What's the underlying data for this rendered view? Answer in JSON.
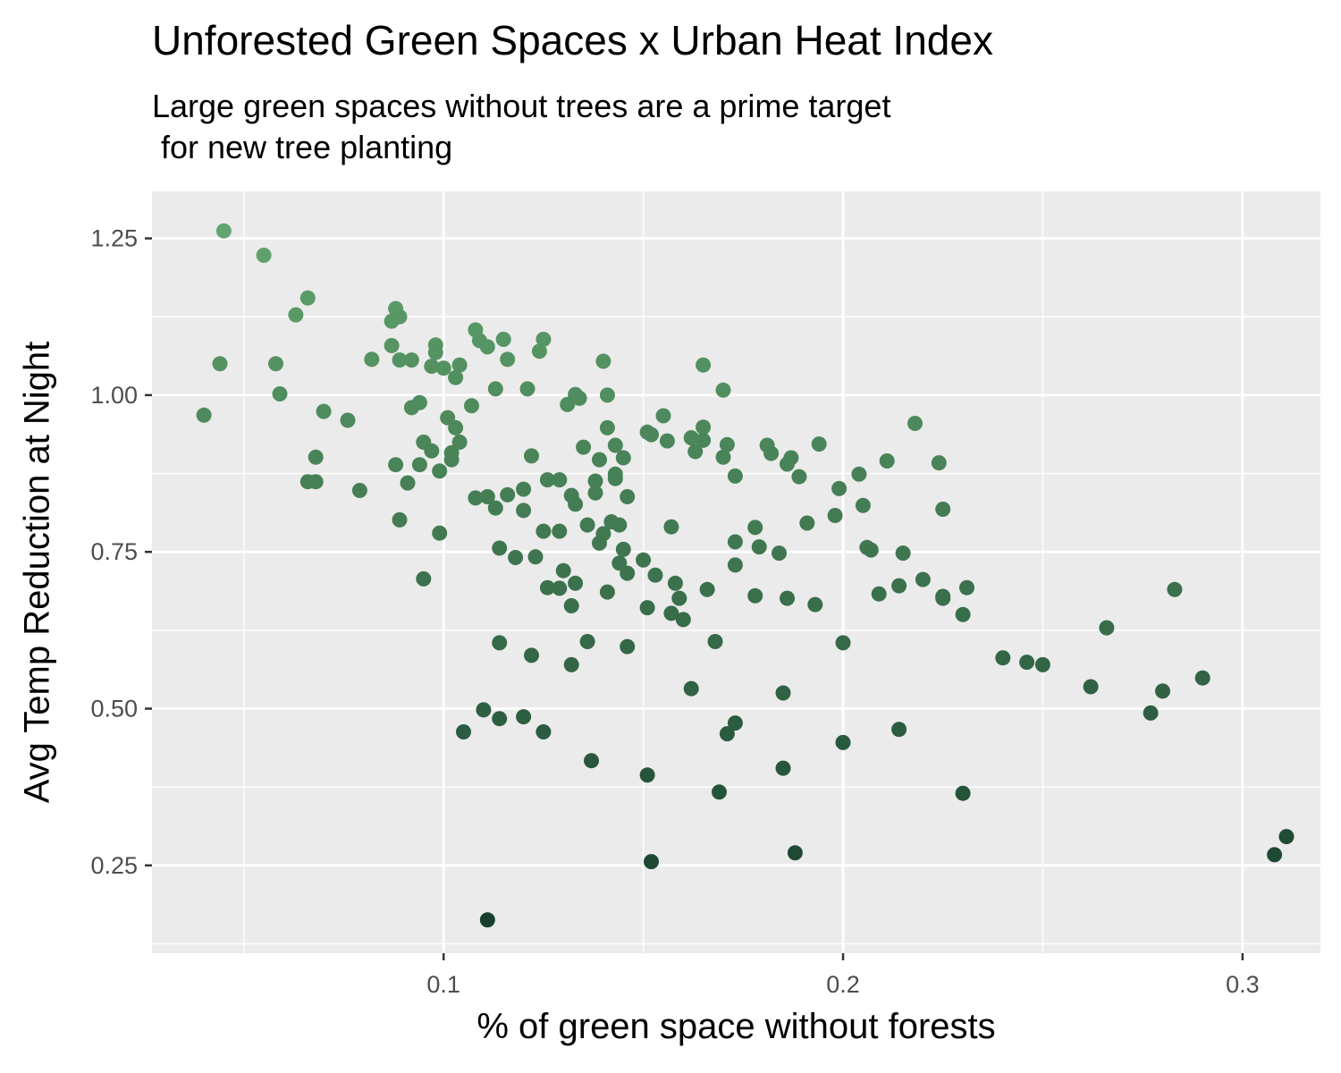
{
  "chart_data": {
    "type": "scatter",
    "title": "Unforested Green Spaces x Urban Heat Index",
    "subtitle": "Large green spaces without trees are a prime target\n for new tree planting",
    "xlabel": "% of green space without forests",
    "ylabel": "Avg Temp Reduction at Night",
    "xlim": [
      0.027,
      0.3195
    ],
    "ylim": [
      0.11,
      1.325
    ],
    "xticks": [
      0.1,
      0.2,
      0.3
    ],
    "xtick_labels": [
      "0.1",
      "0.2",
      "0.3"
    ],
    "yticks": [
      0.25,
      0.5,
      0.75,
      1.0,
      1.25
    ],
    "ytick_labels": [
      "0.25",
      "0.50",
      "0.75",
      "1.00",
      "1.25"
    ],
    "grid": true,
    "colors": {
      "panel": "#ebebeb",
      "grid": "#ffffff",
      "point_high": "#62a56e",
      "point_low": "#17402d"
    },
    "points": [
      [
        0.045,
        1.262
      ],
      [
        0.055,
        1.223
      ],
      [
        0.044,
        1.05
      ],
      [
        0.04,
        0.968
      ],
      [
        0.066,
        1.155
      ],
      [
        0.063,
        1.128
      ],
      [
        0.058,
        1.05
      ],
      [
        0.059,
        1.002
      ],
      [
        0.068,
        0.901
      ],
      [
        0.066,
        0.862
      ],
      [
        0.068,
        0.862
      ],
      [
        0.07,
        0.974
      ],
      [
        0.076,
        0.96
      ],
      [
        0.079,
        0.848
      ],
      [
        0.082,
        1.057
      ],
      [
        0.088,
        1.138
      ],
      [
        0.087,
        1.118
      ],
      [
        0.089,
        1.125
      ],
      [
        0.087,
        1.079
      ],
      [
        0.089,
        1.056
      ],
      [
        0.092,
        1.056
      ],
      [
        0.088,
        0.889
      ],
      [
        0.089,
        0.801
      ],
      [
        0.091,
        0.86
      ],
      [
        0.092,
        0.98
      ],
      [
        0.094,
        0.988
      ],
      [
        0.095,
        0.925
      ],
      [
        0.094,
        0.889
      ],
      [
        0.095,
        0.707
      ],
      [
        0.097,
        1.046
      ],
      [
        0.098,
        1.08
      ],
      [
        0.098,
        1.068
      ],
      [
        0.1,
        1.043
      ],
      [
        0.097,
        0.911
      ],
      [
        0.099,
        0.879
      ],
      [
        0.099,
        0.78
      ],
      [
        0.101,
        0.964
      ],
      [
        0.103,
        1.028
      ],
      [
        0.104,
        1.048
      ],
      [
        0.103,
        0.948
      ],
      [
        0.102,
        0.908
      ],
      [
        0.102,
        0.897
      ],
      [
        0.104,
        0.925
      ],
      [
        0.107,
        0.983
      ],
      [
        0.108,
        1.104
      ],
      [
        0.109,
        1.087
      ],
      [
        0.111,
        1.077
      ],
      [
        0.108,
        0.836
      ],
      [
        0.111,
        0.838
      ],
      [
        0.113,
        1.01
      ],
      [
        0.115,
        1.089
      ],
      [
        0.116,
        1.057
      ],
      [
        0.116,
        0.841
      ],
      [
        0.113,
        0.82
      ],
      [
        0.114,
        0.756
      ],
      [
        0.118,
        0.741
      ],
      [
        0.114,
        0.605
      ],
      [
        0.105,
        0.463
      ],
      [
        0.11,
        0.498
      ],
      [
        0.114,
        0.484
      ],
      [
        0.111,
        0.163
      ],
      [
        0.12,
        0.487
      ],
      [
        0.121,
        1.01
      ],
      [
        0.122,
        0.903
      ],
      [
        0.12,
        0.85
      ],
      [
        0.12,
        0.816
      ],
      [
        0.125,
        1.089
      ],
      [
        0.124,
        1.07
      ],
      [
        0.126,
        0.865
      ],
      [
        0.129,
        0.865
      ],
      [
        0.125,
        0.783
      ],
      [
        0.129,
        0.783
      ],
      [
        0.123,
        0.742
      ],
      [
        0.126,
        0.693
      ],
      [
        0.129,
        0.692
      ],
      [
        0.13,
        0.72
      ],
      [
        0.122,
        0.585
      ],
      [
        0.125,
        0.463
      ],
      [
        0.131,
        0.985
      ],
      [
        0.133,
        1.001
      ],
      [
        0.134,
        0.995
      ],
      [
        0.132,
        0.84
      ],
      [
        0.133,
        0.826
      ],
      [
        0.135,
        0.917
      ],
      [
        0.136,
        0.793
      ],
      [
        0.133,
        0.7
      ],
      [
        0.132,
        0.664
      ],
      [
        0.132,
        0.57
      ],
      [
        0.136,
        0.607
      ],
      [
        0.137,
        0.417
      ],
      [
        0.138,
        0.863
      ],
      [
        0.138,
        0.844
      ],
      [
        0.139,
        0.897
      ],
      [
        0.14,
        1.054
      ],
      [
        0.141,
        1.0
      ],
      [
        0.141,
        0.948
      ],
      [
        0.143,
        0.92
      ],
      [
        0.143,
        0.874
      ],
      [
        0.143,
        0.867
      ],
      [
        0.145,
        0.9
      ],
      [
        0.146,
        0.838
      ],
      [
        0.142,
        0.798
      ],
      [
        0.144,
        0.793
      ],
      [
        0.14,
        0.779
      ],
      [
        0.139,
        0.764
      ],
      [
        0.145,
        0.754
      ],
      [
        0.144,
        0.732
      ],
      [
        0.146,
        0.716
      ],
      [
        0.141,
        0.686
      ],
      [
        0.146,
        0.599
      ],
      [
        0.15,
        0.737
      ],
      [
        0.151,
        0.941
      ],
      [
        0.152,
        0.937
      ],
      [
        0.155,
        0.967
      ],
      [
        0.156,
        0.927
      ],
      [
        0.153,
        0.713
      ],
      [
        0.151,
        0.661
      ],
      [
        0.151,
        0.394
      ],
      [
        0.152,
        0.256
      ],
      [
        0.157,
        0.79
      ],
      [
        0.158,
        0.7
      ],
      [
        0.159,
        0.676
      ],
      [
        0.157,
        0.652
      ],
      [
        0.16,
        0.642
      ],
      [
        0.162,
        0.932
      ],
      [
        0.163,
        0.91
      ],
      [
        0.165,
        0.949
      ],
      [
        0.165,
        0.928
      ],
      [
        0.165,
        1.048
      ],
      [
        0.162,
        0.532
      ],
      [
        0.166,
        0.69
      ],
      [
        0.168,
        0.607
      ],
      [
        0.17,
        1.008
      ],
      [
        0.17,
        0.901
      ],
      [
        0.171,
        0.921
      ],
      [
        0.173,
        0.871
      ],
      [
        0.173,
        0.766
      ],
      [
        0.173,
        0.729
      ],
      [
        0.169,
        0.367
      ],
      [
        0.171,
        0.46
      ],
      [
        0.173,
        0.477
      ],
      [
        0.178,
        0.789
      ],
      [
        0.179,
        0.758
      ],
      [
        0.178,
        0.68
      ],
      [
        0.181,
        0.92
      ],
      [
        0.182,
        0.907
      ],
      [
        0.184,
        0.748
      ],
      [
        0.185,
        0.525
      ],
      [
        0.185,
        0.405
      ],
      [
        0.186,
        0.676
      ],
      [
        0.186,
        0.89
      ],
      [
        0.187,
        0.9
      ],
      [
        0.189,
        0.87
      ],
      [
        0.191,
        0.796
      ],
      [
        0.188,
        0.27
      ],
      [
        0.193,
        0.666
      ],
      [
        0.194,
        0.922
      ],
      [
        0.198,
        0.808
      ],
      [
        0.199,
        0.851
      ],
      [
        0.2,
        0.605
      ],
      [
        0.2,
        0.446
      ],
      [
        0.204,
        0.874
      ],
      [
        0.205,
        0.824
      ],
      [
        0.206,
        0.757
      ],
      [
        0.207,
        0.753
      ],
      [
        0.209,
        0.683
      ],
      [
        0.211,
        0.895
      ],
      [
        0.214,
        0.696
      ],
      [
        0.215,
        0.748
      ],
      [
        0.214,
        0.467
      ],
      [
        0.218,
        0.955
      ],
      [
        0.22,
        0.706
      ],
      [
        0.224,
        0.892
      ],
      [
        0.225,
        0.818
      ],
      [
        0.225,
        0.679
      ],
      [
        0.225,
        0.676
      ],
      [
        0.23,
        0.65
      ],
      [
        0.231,
        0.693
      ],
      [
        0.23,
        0.365
      ],
      [
        0.24,
        0.581
      ],
      [
        0.246,
        0.574
      ],
      [
        0.25,
        0.57
      ],
      [
        0.262,
        0.535
      ],
      [
        0.266,
        0.629
      ],
      [
        0.277,
        0.493
      ],
      [
        0.28,
        0.528
      ],
      [
        0.283,
        0.69
      ],
      [
        0.29,
        0.549
      ],
      [
        0.308,
        0.267
      ],
      [
        0.311,
        0.296
      ]
    ]
  }
}
